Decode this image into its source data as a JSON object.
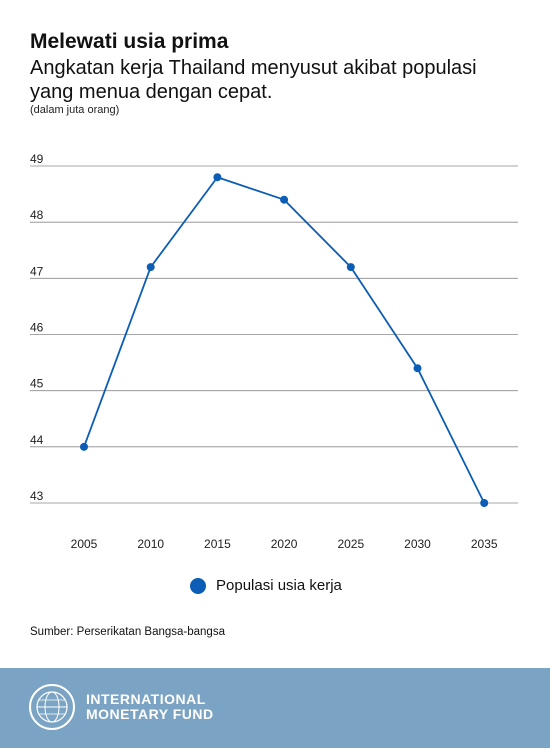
{
  "header": {
    "title": "Melewati usia prima",
    "subtitle": "Angkatan kerja Thailand menyusut akibat populasi yang menua dengan cepat.",
    "unit_note": "(dalam juta orang)"
  },
  "chart_data": {
    "type": "line",
    "categories": [
      "2005",
      "2010",
      "2015",
      "2020",
      "2025",
      "2030",
      "2035"
    ],
    "series": [
      {
        "name": "Populasi usia kerja",
        "values": [
          44.0,
          47.2,
          48.8,
          48.4,
          47.2,
          45.4,
          43.0
        ],
        "color": "#0b5db5"
      }
    ],
    "y_ticks": [
      43,
      44,
      45,
      46,
      47,
      48,
      49
    ],
    "ylim": [
      43,
      49
    ],
    "grid": true,
    "legend_position": "bottom-center"
  },
  "source": "Sumber: Perserikatan Bangsa-bangsa",
  "footer": {
    "line1": "INTERNATIONAL",
    "line2": "MONETARY FUND",
    "bg_color": "#7aa3c4",
    "logo": "imf-seal-icon"
  }
}
